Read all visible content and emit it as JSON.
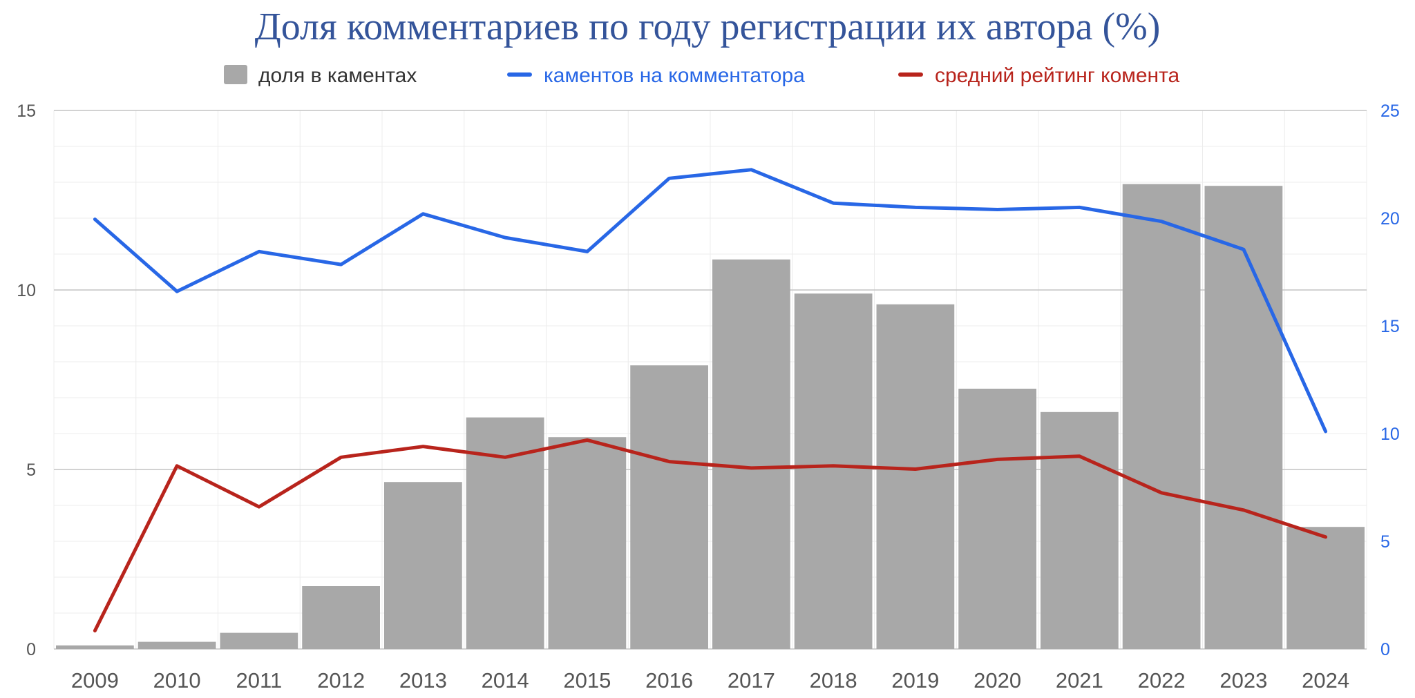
{
  "colors": {
    "title": "#34549a",
    "bars": "#a8a8a8",
    "line_comments_per_commenter": "#2867e6",
    "line_avg_rating": "#b8241c",
    "grid_major": "#c4c4c4",
    "grid_minor": "#ececec",
    "axis_left_text": "#555555",
    "axis_right_text": "#2867e6",
    "x_text": "#555555"
  },
  "chart_data": {
    "type": "bar",
    "title": "Доля комментариев по году регистрации их автора (%)",
    "categories": [
      "2009",
      "2010",
      "2011",
      "2012",
      "2013",
      "2014",
      "2015",
      "2016",
      "2017",
      "2018",
      "2019",
      "2020",
      "2021",
      "2022",
      "2023",
      "2024"
    ],
    "left_axis": {
      "ylim": [
        0,
        15
      ],
      "ticks": [
        "0",
        "5",
        "10",
        "15"
      ]
    },
    "right_axis": {
      "ylim": [
        0,
        25
      ],
      "ticks": [
        "0",
        "5",
        "10",
        "15",
        "20",
        "25"
      ]
    },
    "grid": true,
    "legend_position": "top",
    "series": [
      {
        "name": "доля в каментах",
        "type": "bar",
        "axis": "left",
        "values": [
          0.1,
          0.2,
          0.45,
          1.75,
          4.65,
          6.45,
          5.9,
          7.9,
          10.85,
          9.9,
          9.6,
          7.25,
          6.6,
          12.95,
          12.9,
          3.4
        ]
      },
      {
        "name": "каментов на комментатора",
        "type": "line",
        "axis": "right",
        "values": [
          19.95,
          16.6,
          18.45,
          17.85,
          20.2,
          19.1,
          18.45,
          21.85,
          22.25,
          20.7,
          20.5,
          20.4,
          20.5,
          19.85,
          18.55,
          10.1
        ]
      },
      {
        "name": "средний рейтинг комента",
        "type": "line",
        "axis": "right",
        "values": [
          0.85,
          8.5,
          6.6,
          8.9,
          9.4,
          8.9,
          9.7,
          8.7,
          8.4,
          8.5,
          8.35,
          8.8,
          8.95,
          7.25,
          6.45,
          5.2
        ]
      }
    ]
  }
}
